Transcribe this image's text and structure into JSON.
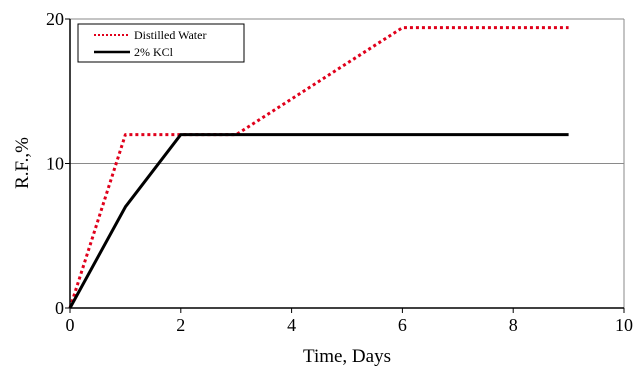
{
  "chart_data": {
    "type": "line",
    "title": "",
    "xlabel": "Time, Days",
    "ylabel": "R.F.,%",
    "xlim": [
      0,
      10
    ],
    "ylim": [
      0,
      20
    ],
    "x_ticks": [
      "0",
      "2",
      "4",
      "6",
      "8",
      "10"
    ],
    "y_ticks": [
      "0",
      "10",
      "20"
    ],
    "x_origin_label": "0",
    "grid": "horizontal line at y=10",
    "legend_position": "top-left",
    "series": [
      {
        "name": "Distilled Water",
        "color": "#e0001b",
        "style": "dotted",
        "x": [
          0,
          1,
          2,
          3,
          6,
          7,
          8,
          9
        ],
        "y": [
          0,
          12,
          12,
          12,
          19.4,
          19.4,
          19.4,
          19.4
        ]
      },
      {
        "name": "2% KCl",
        "color": "#000000",
        "style": "solid",
        "x": [
          0,
          1,
          2,
          3,
          4,
          5,
          6,
          7,
          8,
          9
        ],
        "y": [
          0,
          7,
          12,
          12,
          12,
          12,
          12,
          12,
          12,
          12
        ]
      }
    ]
  }
}
